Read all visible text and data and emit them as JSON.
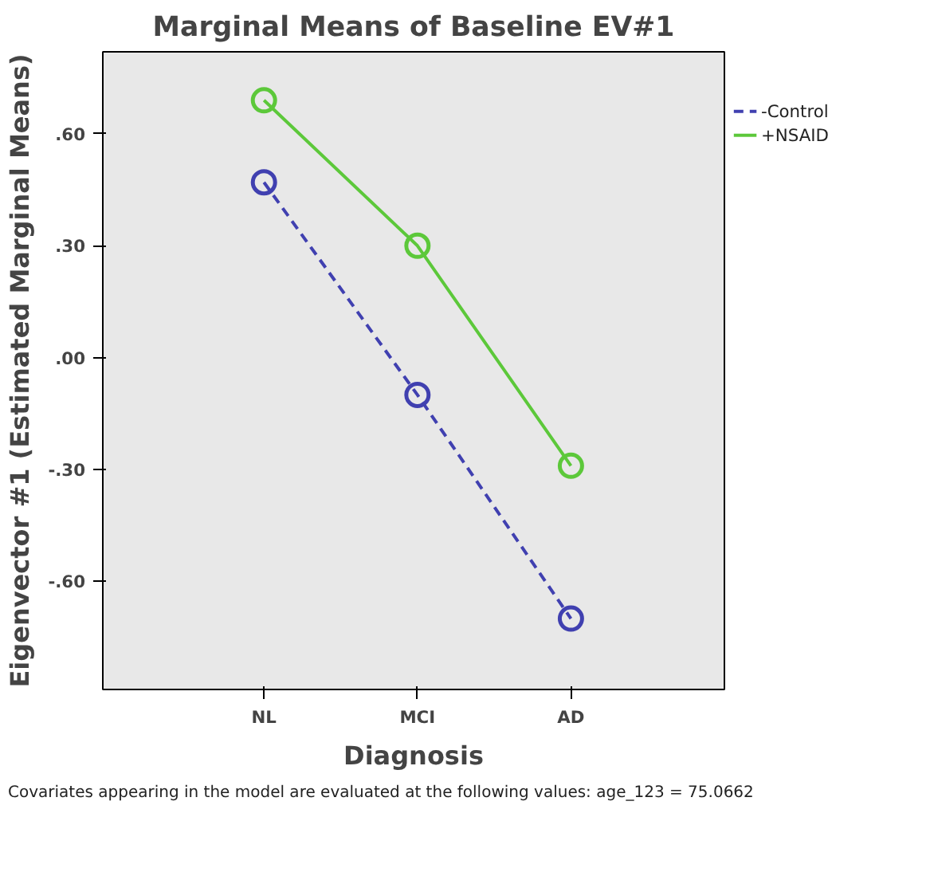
{
  "chart_data": {
    "type": "line",
    "title": "Marginal Means of Baseline EV#1",
    "xlabel": "Diagnosis",
    "ylabel": "Eigenvector #1 (Estimated Marginal Means)",
    "categories": [
      "NL",
      "MCI",
      "AD"
    ],
    "series": [
      {
        "name": "-Control",
        "color": "#4040b0",
        "line_style": "dashed",
        "values": [
          0.47,
          -0.1,
          -0.7
        ]
      },
      {
        "name": "+NSAID",
        "color": "#5cc83a",
        "line_style": "solid",
        "values": [
          0.69,
          0.3,
          -0.29
        ]
      }
    ],
    "ylim": [
      -0.89,
      0.82
    ],
    "yticks": [
      {
        "value": -0.6,
        "label": "-.60"
      },
      {
        "value": -0.3,
        "label": "-.30"
      },
      {
        "value": 0,
        "label": ".00"
      },
      {
        "value": 0.3,
        "label": ".30"
      },
      {
        "value": 0.6,
        "label": ".60"
      }
    ],
    "marker": "circle",
    "legend": "right",
    "grid": false,
    "annotations": [
      "Covariates appearing in the model are evaluated at the following values: age_123 = 75.0662"
    ]
  }
}
